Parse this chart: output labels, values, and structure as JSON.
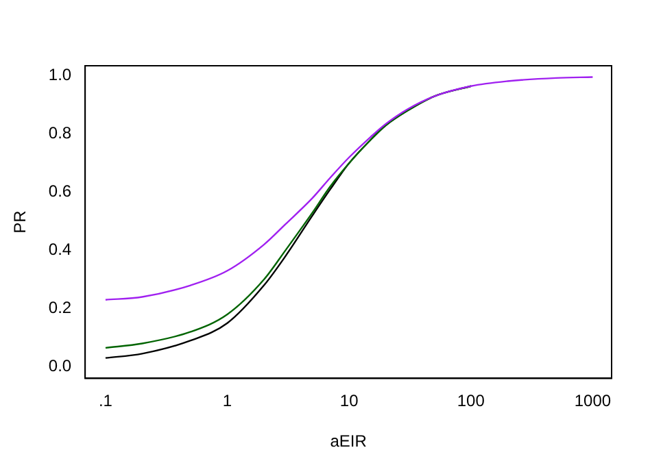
{
  "chart_data": {
    "type": "line",
    "xlabel": "aEIR",
    "ylabel": "PR",
    "log": "x",
    "x": [
      0.1,
      0.2,
      0.5,
      1,
      2,
      3,
      5,
      7,
      10,
      15,
      20,
      30,
      50,
      100,
      200,
      500,
      1000
    ],
    "xlim": [
      0.068,
      1430
    ],
    "xticks": [
      {
        "value": 0.1,
        "label": ".1"
      },
      1,
      10,
      100,
      1000
    ],
    "ylim": [
      -0.04,
      1.035
    ],
    "yticks": [
      {
        "value": 0,
        "label": "0.0"
      },
      0.2,
      0.4,
      0.6,
      0.8,
      {
        "value": 1,
        "label": "1.0"
      }
    ],
    "grid": false,
    "legend": false,
    "marker": "none",
    "line_style": "solid",
    "series": [
      {
        "color": "#000000",
        "values": [
          0.03,
          0.045,
          0.09,
          0.15,
          0.28,
          0.38,
          0.52,
          0.61,
          0.7,
          0.78,
          0.83,
          0.88,
          0.93,
          0.965,
          null,
          null,
          null
        ]
      },
      {
        "color": "#006400",
        "values": [
          0.065,
          0.08,
          0.12,
          0.18,
          0.3,
          0.4,
          0.53,
          0.62,
          0.7,
          0.78,
          0.83,
          0.88,
          0.93,
          0.965,
          null,
          null,
          null
        ]
      },
      {
        "color": "#a020f0",
        "values": [
          0.23,
          0.24,
          0.28,
          0.33,
          0.42,
          0.49,
          0.58,
          0.65,
          0.72,
          0.79,
          0.835,
          0.885,
          0.93,
          0.965,
          0.982,
          0.993,
          0.996
        ]
      }
    ]
  }
}
